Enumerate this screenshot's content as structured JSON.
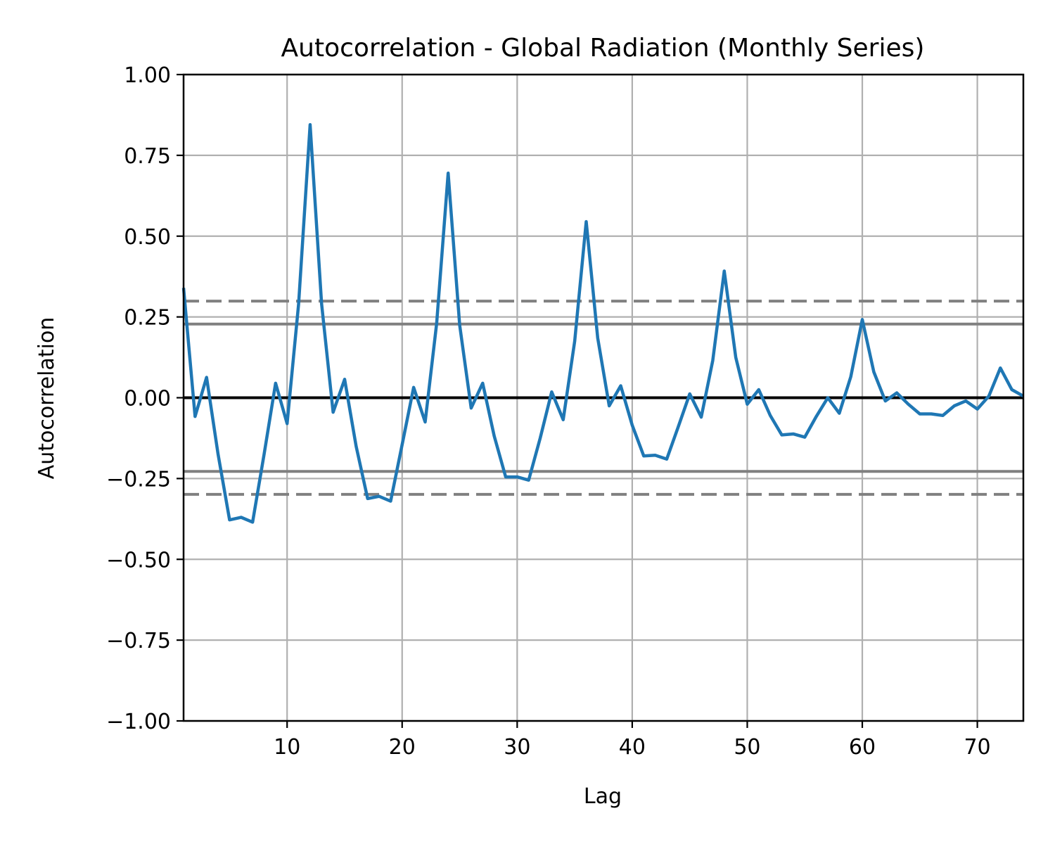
{
  "chart_data": {
    "type": "line",
    "title": "Autocorrelation - Global Radiation (Monthly Series)",
    "xlabel": "Lag",
    "ylabel": "Autocorrelation",
    "xlim": [
      1,
      74
    ],
    "ylim": [
      -1.0,
      1.0
    ],
    "xticks": [
      10,
      20,
      30,
      40,
      50,
      60,
      70
    ],
    "xtick_labels": [
      "10",
      "20",
      "30",
      "40",
      "50",
      "60",
      "70"
    ],
    "yticks": [
      1.0,
      0.75,
      0.5,
      0.25,
      0.0,
      -0.25,
      -0.5,
      -0.75,
      -1.0
    ],
    "ytick_labels": [
      "1.00",
      "0.75",
      "0.50",
      "0.25",
      "0.00",
      "−0.25",
      "−0.50",
      "−0.75",
      "−1.00"
    ],
    "grid": true,
    "confidence_bands": {
      "z95": 0.228,
      "z99": 0.299
    },
    "colors": {
      "series": "#1f77b4",
      "grid": "#b0b0b0",
      "bands": "#808080",
      "zero_line": "#000000"
    },
    "x": [
      1,
      2,
      3,
      4,
      5,
      6,
      7,
      8,
      9,
      10,
      11,
      12,
      13,
      14,
      15,
      16,
      17,
      18,
      19,
      20,
      21,
      22,
      23,
      24,
      25,
      26,
      27,
      28,
      29,
      30,
      31,
      32,
      33,
      34,
      35,
      36,
      37,
      38,
      39,
      40,
      41,
      42,
      43,
      44,
      45,
      46,
      47,
      48,
      49,
      50,
      51,
      52,
      53,
      54,
      55,
      56,
      57,
      58,
      59,
      60,
      61,
      62,
      63,
      64,
      65,
      66,
      67,
      68,
      69,
      70,
      71,
      72,
      73,
      74
    ],
    "values": [
      0.34,
      -0.058,
      0.063,
      -0.175,
      -0.378,
      -0.37,
      -0.385,
      -0.175,
      0.045,
      -0.08,
      0.29,
      0.845,
      0.29,
      -0.045,
      0.057,
      -0.15,
      -0.312,
      -0.305,
      -0.32,
      -0.145,
      0.032,
      -0.075,
      0.23,
      0.695,
      0.225,
      -0.032,
      0.045,
      -0.118,
      -0.245,
      -0.245,
      -0.255,
      -0.125,
      0.018,
      -0.068,
      0.175,
      0.545,
      0.185,
      -0.025,
      0.037,
      -0.085,
      -0.18,
      -0.178,
      -0.19,
      -0.09,
      0.012,
      -0.06,
      0.115,
      0.392,
      0.125,
      -0.02,
      0.025,
      -0.055,
      -0.115,
      -0.112,
      -0.122,
      -0.058,
      0.0,
      -0.048,
      0.065,
      0.242,
      0.08,
      -0.01,
      0.015,
      -0.02,
      -0.05,
      -0.05,
      -0.055,
      -0.025,
      -0.01,
      -0.035,
      0.005,
      0.092,
      0.025,
      0.005
    ]
  }
}
